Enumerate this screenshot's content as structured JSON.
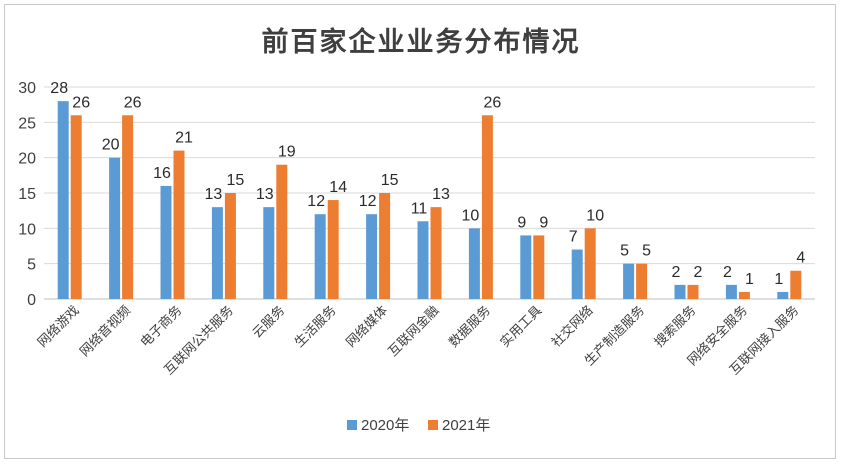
{
  "chart_data": {
    "type": "bar",
    "title": "前百家企业业务分布情况",
    "categories": [
      "网络游戏",
      "网络音视频",
      "电子商务",
      "互联网公共服务",
      "云服务",
      "生活服务",
      "网络媒体",
      "互联网金融",
      "数据服务",
      "实用工具",
      "社交网络",
      "生产制造服务",
      "搜索服务",
      "网络安全服务",
      "互联网接入服务"
    ],
    "series": [
      {
        "name": "2020年",
        "color": "#5b9bd5",
        "values": [
          28,
          20,
          16,
          13,
          13,
          12,
          12,
          11,
          10,
          9,
          7,
          5,
          2,
          2,
          1
        ]
      },
      {
        "name": "2021年",
        "color": "#ed7d31",
        "values": [
          26,
          26,
          21,
          15,
          19,
          14,
          15,
          13,
          26,
          9,
          10,
          5,
          2,
          1,
          4
        ]
      }
    ],
    "yticks": [
      0,
      5,
      10,
      15,
      20,
      25,
      30
    ],
    "ylim": [
      0,
      30
    ],
    "gridlines": true,
    "legend_position": "bottom"
  }
}
